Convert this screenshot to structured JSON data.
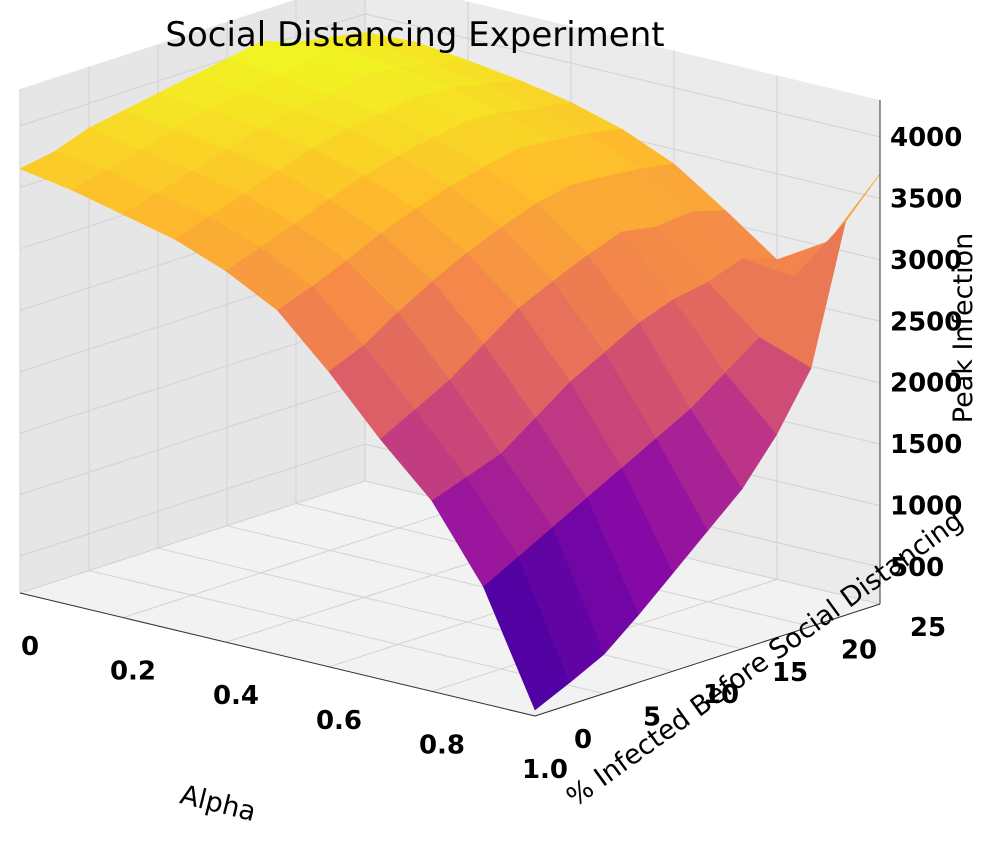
{
  "chart_data": {
    "type": "surface3d",
    "title": "Social Distancing Experiment",
    "xlabel": "Alpha",
    "ylabel": "% Infected Before Social Distancing",
    "zlabel": "Peak Infection",
    "colormap": "plasma",
    "xlim": [
      0,
      1.0
    ],
    "ylim": [
      0,
      25
    ],
    "zlim": [
      200,
      4300
    ],
    "xticks": [
      "0",
      "0.2",
      "0.4",
      "0.6",
      "0.8",
      "1.0"
    ],
    "yticks": [
      "0",
      "5",
      "10",
      "15",
      "20",
      "25"
    ],
    "zticks": [
      "500",
      "1000",
      "1500",
      "2000",
      "2500",
      "3000",
      "3500",
      "4000"
    ],
    "x": [
      0.0,
      0.1,
      0.2,
      0.3,
      0.4,
      0.5,
      0.6,
      0.7,
      0.8,
      0.9,
      1.0
    ],
    "y": [
      0,
      2.5,
      5,
      7.5,
      10,
      12.5,
      15,
      17.5,
      20,
      22.5,
      25
    ],
    "z": [
      [
        3650,
        3700,
        3800,
        3850,
        3900,
        3950,
        4000,
        4050,
        3950,
        3900,
        3850
      ],
      [
        3580,
        3650,
        3720,
        3800,
        3870,
        3920,
        3960,
        4010,
        3980,
        3920,
        3870
      ],
      [
        3480,
        3560,
        3650,
        3730,
        3810,
        3880,
        3900,
        3980,
        3940,
        3880,
        3820
      ],
      [
        3380,
        3470,
        3560,
        3660,
        3750,
        3820,
        3850,
        3900,
        3880,
        3820,
        3760
      ],
      [
        3220,
        3320,
        3420,
        3530,
        3630,
        3700,
        3760,
        3800,
        3780,
        3720,
        3680
      ],
      [
        3000,
        3100,
        3220,
        3350,
        3460,
        3550,
        3620,
        3680,
        3650,
        3620,
        3560
      ],
      [
        2600,
        2720,
        2900,
        3060,
        3200,
        3320,
        3420,
        3480,
        3460,
        3430,
        3380
      ],
      [
        2150,
        2300,
        2450,
        2650,
        2850,
        2980,
        3100,
        3200,
        3150,
        3180,
        3100
      ],
      [
        1750,
        1850,
        1950,
        2150,
        2350,
        2500,
        2650,
        2750,
        2800,
        2900,
        2800
      ],
      [
        1150,
        1300,
        1450,
        1600,
        1750,
        1900,
        2050,
        2250,
        2450,
        2850,
        3050
      ],
      [
        250,
        380,
        520,
        750,
        1000,
        1250,
        1500,
        1850,
        2300,
        3400,
        3700
      ]
    ]
  }
}
